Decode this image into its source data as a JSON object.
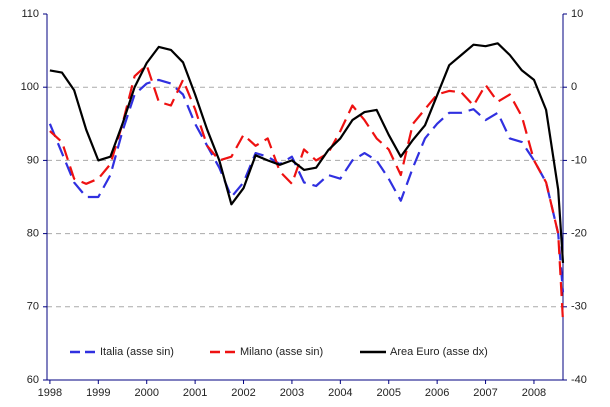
{
  "chart_data": {
    "type": "line",
    "x": [
      1998,
      1998.25,
      1998.5,
      1998.75,
      1999,
      1999.25,
      1999.5,
      1999.75,
      2000,
      2000.25,
      2000.5,
      2000.75,
      2001,
      2001.25,
      2001.5,
      2001.75,
      2002,
      2002.25,
      2002.5,
      2002.75,
      2003,
      2003.25,
      2003.5,
      2003.75,
      2004,
      2004.25,
      2004.5,
      2004.75,
      2005,
      2005.25,
      2005.5,
      2005.75,
      2006,
      2006.25,
      2006.5,
      2006.75,
      2007,
      2007.25,
      2007.5,
      2007.75,
      2008,
      2008.25,
      2008.5,
      2008.6
    ],
    "xlim": [
      1997.94,
      2008.6
    ],
    "xticks": [
      1998,
      1999,
      2000,
      2001,
      2002,
      2003,
      2004,
      2005,
      2006,
      2007,
      2008
    ],
    "ylim": [
      60,
      110
    ],
    "yticks": [
      60,
      70,
      80,
      90,
      100,
      110
    ],
    "y2lim": [
      -40,
      10
    ],
    "y2ticks": [
      -40,
      -30,
      -20,
      -10,
      0,
      10
    ],
    "grid": true,
    "legend": "bottom",
    "series": [
      {
        "name": "Italia (asse sin)",
        "color": "#3030e0",
        "dash": true,
        "values": [
          95,
          91,
          87,
          85,
          85,
          88,
          94,
          99,
          100.5,
          101,
          100.5,
          99,
          95,
          92,
          89,
          85,
          87,
          91,
          90.5,
          89.5,
          90.5,
          87,
          86.5,
          88,
          87.5,
          90,
          91,
          90,
          87.5,
          84.5,
          89,
          93,
          95,
          96.5,
          96.5,
          97,
          95.5,
          96.5,
          93,
          92.5,
          90,
          87,
          80,
          72
        ]
      },
      {
        "name": "Milano (asse sin)",
        "color": "#ee1111",
        "dash": true,
        "values": [
          94,
          92.5,
          87.5,
          86.8,
          87.5,
          89.5,
          95,
          101.5,
          103,
          98,
          97.5,
          101,
          97,
          92,
          90,
          90.5,
          93.5,
          92,
          93,
          88.5,
          86.8,
          91.5,
          90,
          91,
          94,
          97.5,
          95.5,
          93,
          91.5,
          88,
          95,
          97,
          99,
          99.5,
          99.3,
          97.5,
          100.3,
          98,
          99,
          96,
          90,
          87,
          80,
          68
        ]
      },
      {
        "name": "Area Euro (asse dx)",
        "color": "#000000",
        "dash": false,
        "axis": "y2",
        "values": [
          2.3,
          2.0,
          -0.4,
          -5.8,
          -10,
          -9.5,
          -5,
          0,
          3.3,
          5.5,
          5.1,
          3.4,
          -1,
          -5.8,
          -10,
          -16,
          -13.8,
          -9.3,
          -10,
          -10.6,
          -10,
          -11.3,
          -11,
          -8.6,
          -7,
          -4.5,
          -3.4,
          -3.1,
          -6.5,
          -9.5,
          -7.2,
          -5.2,
          -1.1,
          3,
          4.4,
          5.8,
          5.6,
          6,
          4.4,
          2.3,
          1,
          -3.1,
          -14,
          -24
        ]
      }
    ]
  }
}
